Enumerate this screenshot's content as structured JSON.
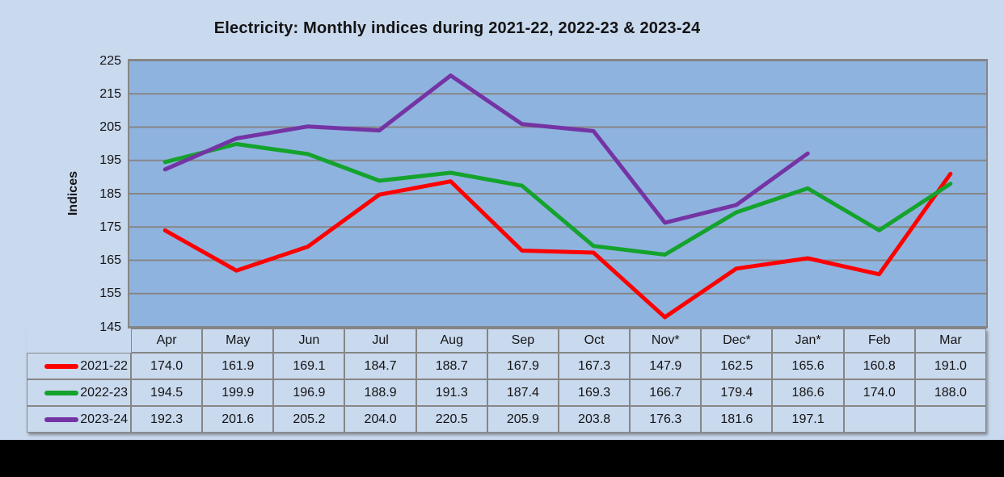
{
  "window": {
    "background_color": "#C9D9EE",
    "bottom_bar_color": "#000000",
    "text_color": "#141414"
  },
  "chart_data": {
    "type": "line",
    "title": "Electricity: Monthly indices during 2021-22, 2022-23 & 2023-24",
    "ylabel": "Indices",
    "xlabel": "",
    "categories": [
      "Apr",
      "May",
      "Jun",
      "Jul",
      "Aug",
      "Sep",
      "Oct",
      "Nov*",
      "Dec*",
      "Jan*",
      "Feb",
      "Mar"
    ],
    "series": [
      {
        "name": "2021-22",
        "color": "#FE0000",
        "values": [
          174.0,
          161.9,
          169.1,
          184.7,
          188.7,
          167.9,
          167.3,
          147.9,
          162.5,
          165.6,
          160.8,
          191.0
        ]
      },
      {
        "name": "2022-23",
        "color": "#14A32C",
        "values": [
          194.5,
          199.9,
          196.9,
          188.9,
          191.3,
          187.4,
          169.3,
          166.7,
          179.4,
          186.6,
          174.0,
          188.0
        ]
      },
      {
        "name": "2023-24",
        "color": "#7434A4",
        "values": [
          192.3,
          201.6,
          205.2,
          204.0,
          220.5,
          205.9,
          203.8,
          176.3,
          181.6,
          197.1,
          null,
          null
        ]
      }
    ],
    "ylim": [
      145,
      225
    ],
    "ytick_step": 10,
    "grid": true,
    "gridline_color": "#868686",
    "plot_background": "#8FB3DF",
    "line_width": 5,
    "legend_position": "table-row-headers-left",
    "value_decimals": 1
  }
}
